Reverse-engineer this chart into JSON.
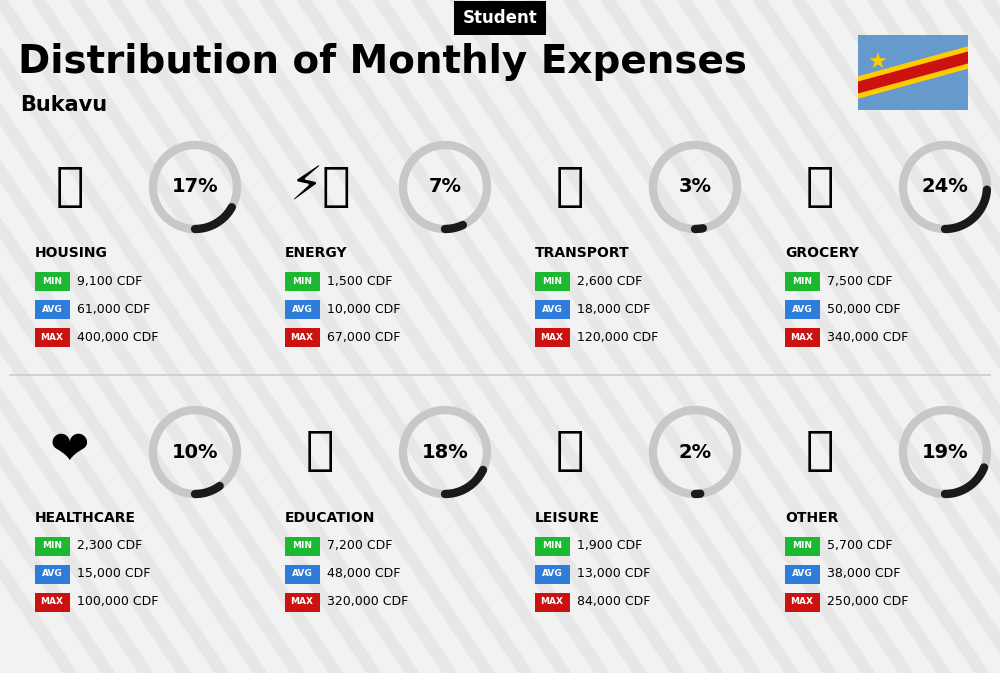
{
  "title": "Distribution of Monthly Expenses",
  "subtitle": "Student",
  "location": "Bukavu",
  "bg_color": "#f2f2f2",
  "categories": [
    {
      "name": "HOUSING",
      "pct": 17,
      "min_val": "9,100 CDF",
      "avg_val": "61,000 CDF",
      "max_val": "400,000 CDF",
      "col": 0,
      "row": 0
    },
    {
      "name": "ENERGY",
      "pct": 7,
      "min_val": "1,500 CDF",
      "avg_val": "10,000 CDF",
      "max_val": "67,000 CDF",
      "col": 1,
      "row": 0
    },
    {
      "name": "TRANSPORT",
      "pct": 3,
      "min_val": "2,600 CDF",
      "avg_val": "18,000 CDF",
      "max_val": "120,000 CDF",
      "col": 2,
      "row": 0
    },
    {
      "name": "GROCERY",
      "pct": 24,
      "min_val": "7,500 CDF",
      "avg_val": "50,000 CDF",
      "max_val": "340,000 CDF",
      "col": 3,
      "row": 0
    },
    {
      "name": "HEALTHCARE",
      "pct": 10,
      "min_val": "2,300 CDF",
      "avg_val": "15,000 CDF",
      "max_val": "100,000 CDF",
      "col": 0,
      "row": 1
    },
    {
      "name": "EDUCATION",
      "pct": 18,
      "min_val": "7,200 CDF",
      "avg_val": "48,000 CDF",
      "max_val": "320,000 CDF",
      "col": 1,
      "row": 1
    },
    {
      "name": "LEISURE",
      "pct": 2,
      "min_val": "1,900 CDF",
      "avg_val": "13,000 CDF",
      "max_val": "84,000 CDF",
      "col": 2,
      "row": 1
    },
    {
      "name": "OTHER",
      "pct": 19,
      "min_val": "5,700 CDF",
      "avg_val": "38,000 CDF",
      "max_val": "250,000 CDF",
      "col": 3,
      "row": 1
    }
  ],
  "min_color": "#1db832",
  "avg_color": "#2e7ddb",
  "max_color": "#cc1111",
  "arc_dark": "#1a1a1a",
  "arc_light": "#c8c8c8",
  "stripe_color": "#e0e0e0",
  "icons": {
    "HOUSING": "🏢",
    "ENERGY": "⚡🏠",
    "TRANSPORT": "🚌",
    "GROCERY": "🛒",
    "HEALTHCARE": "❤️",
    "EDUCATION": "🎓",
    "LEISURE": "🛍️",
    "OTHER": "👜"
  }
}
